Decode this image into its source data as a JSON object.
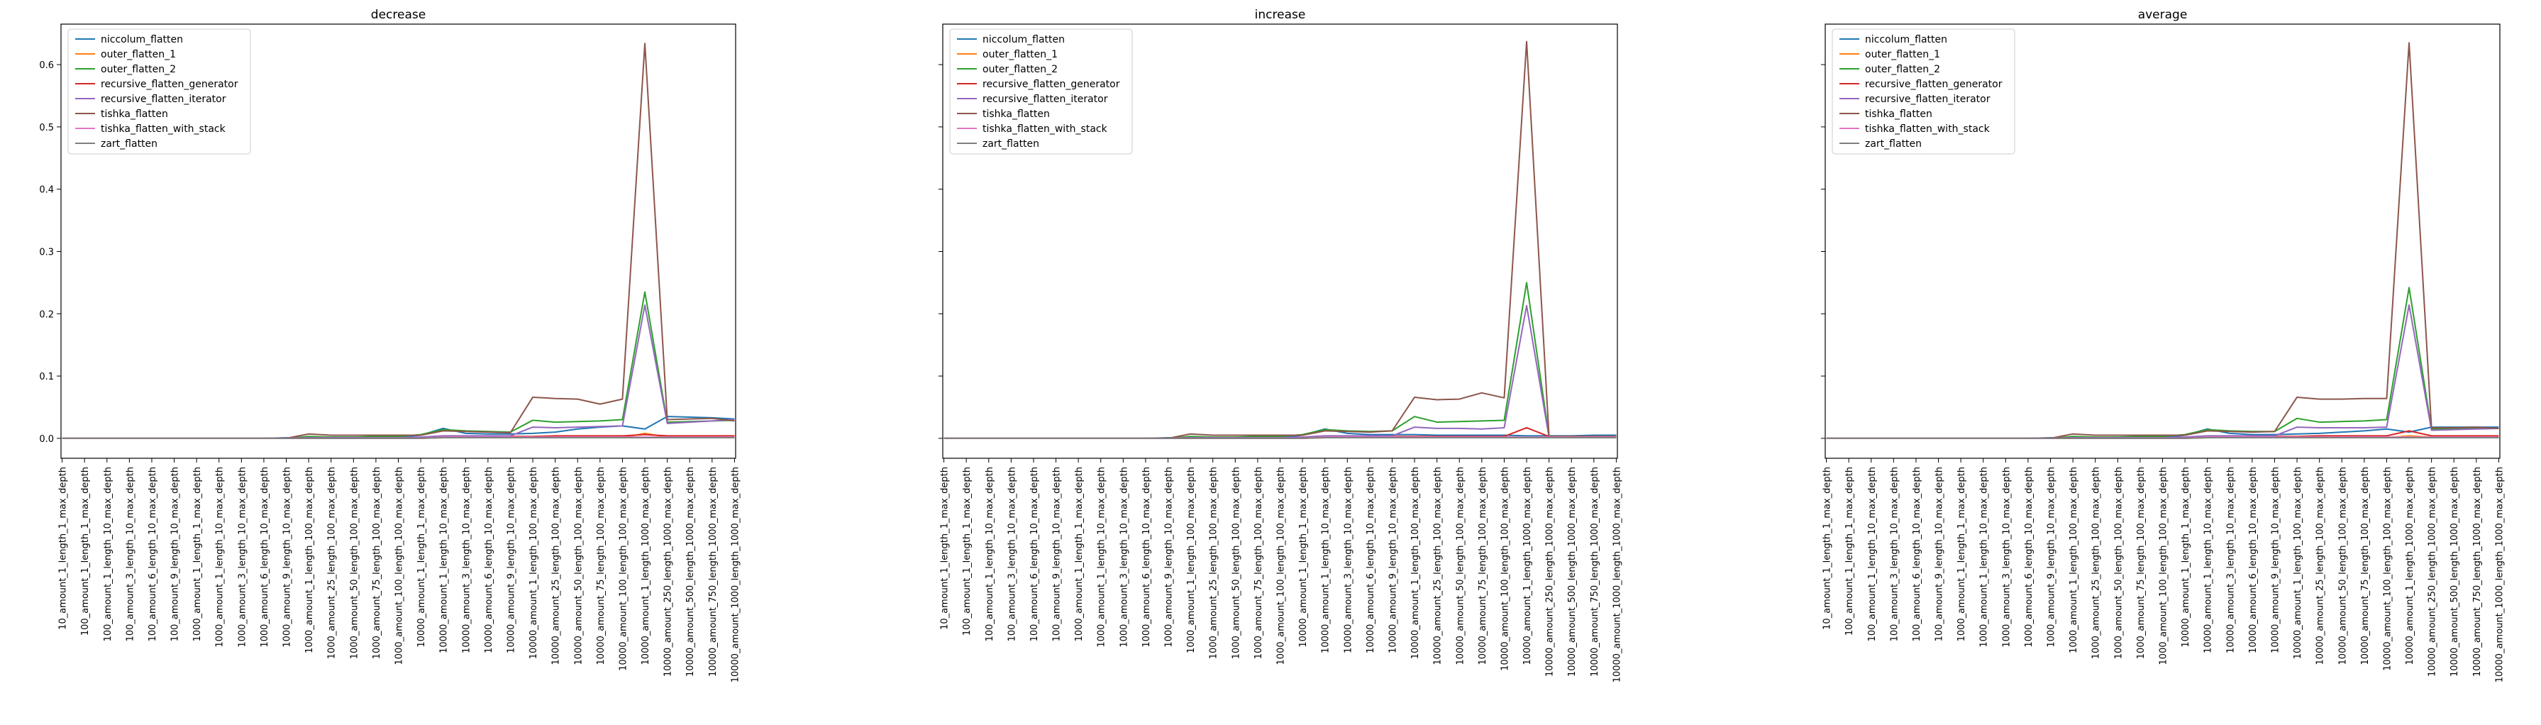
{
  "chart_data": {
    "type": "line",
    "shared_y": true,
    "ylim": [
      -0.032,
      0.665
    ],
    "yticks": [
      0.0,
      0.1,
      0.2,
      0.3,
      0.4,
      0.5,
      0.6
    ],
    "ytick_labels": [
      "0.0",
      "0.1",
      "0.2",
      "0.3",
      "0.4",
      "0.5",
      "0.6"
    ],
    "legend_position": "upper left",
    "x": [
      "10_amount_1_length_1_max_depth",
      "100_amount_1_length_1_max_depth",
      "100_amount_1_length_10_max_depth",
      "100_amount_3_length_10_max_depth",
      "100_amount_6_length_10_max_depth",
      "100_amount_9_length_10_max_depth",
      "1000_amount_1_length_1_max_depth",
      "1000_amount_1_length_10_max_depth",
      "1000_amount_3_length_10_max_depth",
      "1000_amount_6_length_10_max_depth",
      "1000_amount_9_length_10_max_depth",
      "1000_amount_1_length_100_max_depth",
      "1000_amount_25_length_100_max_depth",
      "1000_amount_50_length_100_max_depth",
      "1000_amount_75_length_100_max_depth",
      "1000_amount_100_length_100_max_depth",
      "10000_amount_1_length_1_max_depth",
      "10000_amount_1_length_10_max_depth",
      "10000_amount_3_length_10_max_depth",
      "10000_amount_6_length_10_max_depth",
      "10000_amount_9_length_10_max_depth",
      "10000_amount_1_length_100_max_depth",
      "10000_amount_25_length_100_max_depth",
      "10000_amount_50_length_100_max_depth",
      "10000_amount_75_length_100_max_depth",
      "10000_amount_100_length_100_max_depth",
      "10000_amount_1_length_1000_max_depth",
      "10000_amount_250_length_1000_max_depth",
      "10000_amount_500_length_1000_max_depth",
      "10000_amount_750_length_1000_max_depth",
      "10000_amount_1000_length_1000_max_depth"
    ],
    "series_styles": [
      {
        "name": "niccolum_flatten",
        "color": "#1f77b4"
      },
      {
        "name": "outer_flatten_1",
        "color": "#ff7f0e"
      },
      {
        "name": "outer_flatten_2",
        "color": "#2ca02c"
      },
      {
        "name": "recursive_flatten_generator",
        "color": "#d62728"
      },
      {
        "name": "recursive_flatten_iterator",
        "color": "#9467bd"
      },
      {
        "name": "tishka_flatten",
        "color": "#8c564b"
      },
      {
        "name": "tishka_flatten_with_stack",
        "color": "#e377c2"
      },
      {
        "name": "zart_flatten",
        "color": "#7f7f7f"
      }
    ],
    "charts": [
      {
        "title": "decrease",
        "series": [
          {
            "name": "niccolum_flatten",
            "values": [
              0,
              0,
              0,
              0,
              0,
              0,
              0,
              0,
              0,
              0,
              0.001,
              0.001,
              0.002,
              0.002,
              0.002,
              0.002,
              0.005,
              0.016,
              0.008,
              0.007,
              0.007,
              0.008,
              0.01,
              0.015,
              0.018,
              0.02,
              0.015,
              0.035,
              0.034,
              0.033,
              0.031
            ]
          },
          {
            "name": "outer_flatten_1",
            "values": [
              0,
              0,
              0,
              0,
              0,
              0,
              0,
              0,
              0,
              0,
              0,
              0,
              0,
              0,
              0,
              0,
              0,
              0.001,
              0.001,
              0.001,
              0.001,
              0.001,
              0.001,
              0.001,
              0.001,
              0.001,
              0.008,
              0.002,
              0.002,
              0.002,
              0.002
            ]
          },
          {
            "name": "outer_flatten_2",
            "values": [
              0,
              0,
              0,
              0,
              0,
              0,
              0,
              0,
              0,
              0,
              0,
              0.003,
              0.002,
              0.002,
              0.003,
              0.003,
              0.006,
              0.014,
              0.012,
              0.011,
              0.01,
              0.029,
              0.026,
              0.027,
              0.028,
              0.03,
              0.235,
              0.026,
              0.027,
              0.028,
              0.029
            ]
          },
          {
            "name": "recursive_flatten_generator",
            "values": [
              0,
              0,
              0,
              0,
              0,
              0,
              0,
              0,
              0,
              0,
              0,
              0.001,
              0.001,
              0.001,
              0.001,
              0.001,
              0.001,
              0.003,
              0.003,
              0.003,
              0.003,
              0.003,
              0.004,
              0.004,
              0.004,
              0.004,
              0.006,
              0.004,
              0.004,
              0.004,
              0.004
            ]
          },
          {
            "name": "recursive_flatten_iterator",
            "values": [
              0,
              0,
              0,
              0,
              0,
              0,
              0,
              0,
              0,
              0,
              0,
              0.001,
              0.001,
              0.001,
              0.001,
              0.001,
              0.002,
              0.004,
              0.004,
              0.004,
              0.004,
              0.018,
              0.017,
              0.018,
              0.019,
              0.02,
              0.214,
              0.024,
              0.026,
              0.028,
              0.03
            ]
          },
          {
            "name": "tishka_flatten",
            "values": [
              0,
              0,
              0,
              0,
              0,
              0,
              0,
              0,
              0,
              0,
              0,
              0.007,
              0.005,
              0.005,
              0.005,
              0.005,
              0.005,
              0.012,
              0.011,
              0.01,
              0.009,
              0.066,
              0.064,
              0.063,
              0.055,
              0.063,
              0.634,
              0.03,
              0.031,
              0.032,
              0.028
            ]
          },
          {
            "name": "tishka_flatten_with_stack",
            "values": [
              0,
              0,
              0,
              0,
              0,
              0,
              0,
              0,
              0,
              0,
              0,
              0,
              0,
              0,
              0,
              0,
              0,
              0.002,
              0.002,
              0.002,
              0.002,
              0.002,
              0.002,
              0.002,
              0.002,
              0.002,
              0.002,
              0.002,
              0.002,
              0.002,
              0.002
            ]
          },
          {
            "name": "zart_flatten",
            "values": [
              0,
              0,
              0,
              0,
              0,
              0,
              0,
              0,
              0,
              0,
              0,
              0,
              0,
              0,
              0,
              0,
              0,
              0.001,
              0.001,
              0.001,
              0.001,
              0.001,
              0.001,
              0.001,
              0.001,
              0.001,
              0.001,
              0.001,
              0.001,
              0.001,
              0.001
            ]
          }
        ]
      },
      {
        "title": "increase",
        "series": [
          {
            "name": "niccolum_flatten",
            "values": [
              0,
              0,
              0,
              0,
              0,
              0,
              0,
              0,
              0,
              0,
              0.001,
              0.001,
              0.001,
              0.001,
              0.001,
              0.001,
              0.005,
              0.015,
              0.008,
              0.006,
              0.006,
              0.006,
              0.005,
              0.005,
              0.005,
              0.005,
              0.004,
              0.004,
              0.004,
              0.005,
              0.005
            ]
          },
          {
            "name": "outer_flatten_1",
            "values": [
              0,
              0,
              0,
              0,
              0,
              0,
              0,
              0,
              0,
              0,
              0,
              0,
              0,
              0,
              0,
              0,
              0,
              0.001,
              0.001,
              0.001,
              0.001,
              0.001,
              0.001,
              0.001,
              0.001,
              0.001,
              0.001,
              0.001,
              0.001,
              0.001,
              0.001
            ]
          },
          {
            "name": "outer_flatten_2",
            "values": [
              0,
              0,
              0,
              0,
              0,
              0,
              0,
              0,
              0,
              0,
              0,
              0.003,
              0.002,
              0.002,
              0.003,
              0.003,
              0.006,
              0.014,
              0.012,
              0.011,
              0.012,
              0.035,
              0.026,
              0.027,
              0.028,
              0.029,
              0.25,
              0.003,
              0.003,
              0.003,
              0.003
            ]
          },
          {
            "name": "recursive_flatten_generator",
            "values": [
              0,
              0,
              0,
              0,
              0,
              0,
              0,
              0,
              0,
              0,
              0,
              0.001,
              0.001,
              0.001,
              0.001,
              0.001,
              0.001,
              0.003,
              0.003,
              0.003,
              0.003,
              0.003,
              0.003,
              0.003,
              0.003,
              0.003,
              0.017,
              0.003,
              0.003,
              0.003,
              0.003
            ]
          },
          {
            "name": "recursive_flatten_iterator",
            "values": [
              0,
              0,
              0,
              0,
              0,
              0,
              0,
              0,
              0,
              0,
              0,
              0.001,
              0.001,
              0.001,
              0.001,
              0.001,
              0.002,
              0.004,
              0.004,
              0.004,
              0.004,
              0.018,
              0.016,
              0.016,
              0.015,
              0.017,
              0.213,
              0.002,
              0.002,
              0.002,
              0.002
            ]
          },
          {
            "name": "tishka_flatten",
            "values": [
              0,
              0,
              0,
              0,
              0,
              0,
              0,
              0,
              0,
              0,
              0,
              0.007,
              0.005,
              0.005,
              0.005,
              0.005,
              0.005,
              0.012,
              0.011,
              0.01,
              0.012,
              0.066,
              0.062,
              0.063,
              0.073,
              0.065,
              0.637,
              0.003,
              0.003,
              0.003,
              0.003
            ]
          },
          {
            "name": "tishka_flatten_with_stack",
            "values": [
              0,
              0,
              0,
              0,
              0,
              0,
              0,
              0,
              0,
              0,
              0,
              0,
              0,
              0,
              0,
              0,
              0,
              0.002,
              0.002,
              0.002,
              0.002,
              0.002,
              0.002,
              0.002,
              0.002,
              0.002,
              0.002,
              0.002,
              0.002,
              0.002,
              0.002
            ]
          },
          {
            "name": "zart_flatten",
            "values": [
              0,
              0,
              0,
              0,
              0,
              0,
              0,
              0,
              0,
              0,
              0,
              0,
              0,
              0,
              0,
              0,
              0,
              0.001,
              0.001,
              0.001,
              0.001,
              0.001,
              0.001,
              0.001,
              0.001,
              0.001,
              0.001,
              0.001,
              0.001,
              0.001,
              0.001
            ]
          }
        ]
      },
      {
        "title": "average",
        "series": [
          {
            "name": "niccolum_flatten",
            "values": [
              0,
              0,
              0,
              0,
              0,
              0,
              0,
              0,
              0,
              0,
              0.001,
              0.001,
              0.001,
              0.001,
              0.001,
              0.001,
              0.005,
              0.015,
              0.008,
              0.006,
              0.006,
              0.007,
              0.008,
              0.01,
              0.012,
              0.015,
              0.01,
              0.018,
              0.018,
              0.018,
              0.018
            ]
          },
          {
            "name": "outer_flatten_1",
            "values": [
              0,
              0,
              0,
              0,
              0,
              0,
              0,
              0,
              0,
              0,
              0,
              0,
              0,
              0,
              0,
              0,
              0,
              0.001,
              0.001,
              0.001,
              0.001,
              0.001,
              0.001,
              0.001,
              0.001,
              0.001,
              0.004,
              0.002,
              0.002,
              0.002,
              0.002
            ]
          },
          {
            "name": "outer_flatten_2",
            "values": [
              0,
              0,
              0,
              0,
              0,
              0,
              0,
              0,
              0,
              0,
              0,
              0.003,
              0.002,
              0.002,
              0.003,
              0.003,
              0.006,
              0.014,
              0.012,
              0.011,
              0.011,
              0.032,
              0.026,
              0.027,
              0.028,
              0.03,
              0.242,
              0.015,
              0.015,
              0.016,
              0.016
            ]
          },
          {
            "name": "recursive_flatten_generator",
            "values": [
              0,
              0,
              0,
              0,
              0,
              0,
              0,
              0,
              0,
              0,
              0,
              0.001,
              0.001,
              0.001,
              0.001,
              0.001,
              0.001,
              0.003,
              0.003,
              0.003,
              0.003,
              0.003,
              0.004,
              0.004,
              0.004,
              0.004,
              0.012,
              0.004,
              0.004,
              0.004,
              0.004
            ]
          },
          {
            "name": "recursive_flatten_iterator",
            "values": [
              0,
              0,
              0,
              0,
              0,
              0,
              0,
              0,
              0,
              0,
              0,
              0.001,
              0.001,
              0.001,
              0.001,
              0.001,
              0.002,
              0.004,
              0.004,
              0.004,
              0.004,
              0.018,
              0.017,
              0.017,
              0.017,
              0.018,
              0.214,
              0.013,
              0.014,
              0.015,
              0.016
            ]
          },
          {
            "name": "tishka_flatten",
            "values": [
              0,
              0,
              0,
              0,
              0,
              0,
              0,
              0,
              0,
              0,
              0,
              0.007,
              0.005,
              0.005,
              0.005,
              0.005,
              0.005,
              0.012,
              0.011,
              0.01,
              0.011,
              0.066,
              0.063,
              0.063,
              0.064,
              0.064,
              0.635,
              0.017,
              0.017,
              0.018,
              0.016
            ]
          },
          {
            "name": "tishka_flatten_with_stack",
            "values": [
              0,
              0,
              0,
              0,
              0,
              0,
              0,
              0,
              0,
              0,
              0,
              0,
              0,
              0,
              0,
              0,
              0,
              0.002,
              0.002,
              0.002,
              0.002,
              0.002,
              0.002,
              0.002,
              0.002,
              0.002,
              0.002,
              0.002,
              0.002,
              0.002,
              0.002
            ]
          },
          {
            "name": "zart_flatten",
            "values": [
              0,
              0,
              0,
              0,
              0,
              0,
              0,
              0,
              0,
              0,
              0,
              0,
              0,
              0,
              0,
              0,
              0,
              0.001,
              0.001,
              0.001,
              0.001,
              0.001,
              0.001,
              0.001,
              0.001,
              0.001,
              0.001,
              0.001,
              0.001,
              0.001,
              0.001
            ]
          }
        ]
      }
    ]
  }
}
